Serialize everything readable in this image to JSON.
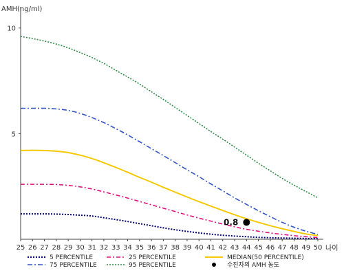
{
  "chart_data": {
    "type": "line",
    "ylabel": "AMH(ng/ml)",
    "xlabel": "나이",
    "x": [
      25,
      26,
      27,
      28,
      29,
      30,
      31,
      32,
      33,
      34,
      35,
      36,
      37,
      38,
      39,
      40,
      41,
      42,
      43,
      44,
      45,
      46,
      47,
      48,
      49,
      50
    ],
    "xlim": [
      25,
      50
    ],
    "ylim": [
      0,
      11
    ],
    "yticks": [
      5,
      10
    ],
    "series": [
      {
        "name": "5 PERCENTILE",
        "color": "#00006e",
        "dash": "2,2",
        "width": 2,
        "values": [
          1.2,
          1.2,
          1.2,
          1.19,
          1.17,
          1.14,
          1.1,
          1.02,
          0.93,
          0.84,
          0.74,
          0.64,
          0.54,
          0.45,
          0.37,
          0.3,
          0.24,
          0.19,
          0.15,
          0.12,
          0.09,
          0.07,
          0.06,
          0.05,
          0.04,
          0.03
        ]
      },
      {
        "name": "25 PERCENTILE",
        "color": "#e0117f",
        "dash": "6,3,2,3",
        "width": 1.6,
        "values": [
          2.6,
          2.6,
          2.6,
          2.59,
          2.55,
          2.48,
          2.38,
          2.24,
          2.1,
          1.95,
          1.79,
          1.63,
          1.47,
          1.31,
          1.15,
          1.0,
          0.86,
          0.72,
          0.59,
          0.47,
          0.38,
          0.3,
          0.23,
          0.17,
          0.12,
          0.08
        ]
      },
      {
        "name": "MEDIAN(50 PERCENTILE)",
        "color": "#f5c800",
        "dash": "",
        "width": 2,
        "values": [
          4.2,
          4.21,
          4.2,
          4.17,
          4.1,
          3.98,
          3.82,
          3.62,
          3.4,
          3.17,
          2.93,
          2.7,
          2.46,
          2.23,
          2.0,
          1.78,
          1.57,
          1.36,
          1.16,
          0.97,
          0.8,
          0.64,
          0.5,
          0.37,
          0.25,
          0.17
        ]
      },
      {
        "name": "75 PERCENTILE",
        "color": "#3153c4",
        "dash": "7,3,2,3",
        "width": 1.6,
        "values": [
          6.2,
          6.2,
          6.2,
          6.17,
          6.1,
          5.96,
          5.76,
          5.52,
          5.24,
          4.94,
          4.62,
          4.29,
          3.96,
          3.63,
          3.29,
          2.96,
          2.62,
          2.29,
          1.96,
          1.65,
          1.35,
          1.07,
          0.8,
          0.57,
          0.38,
          0.23
        ]
      },
      {
        "name": "95 PERCENTILE",
        "color": "#2e8b45",
        "dash": "2,2",
        "width": 1.6,
        "values": [
          9.6,
          9.5,
          9.38,
          9.24,
          9.06,
          8.84,
          8.6,
          8.32,
          8.0,
          7.68,
          7.35,
          6.98,
          6.62,
          6.24,
          5.86,
          5.48,
          5.1,
          4.74,
          4.36,
          3.98,
          3.6,
          3.24,
          2.88,
          2.56,
          2.26,
          1.96
        ]
      }
    ],
    "marker": {
      "name": "수진자의 AMH 농도",
      "x": 44,
      "y": 0.8,
      "label": "0.8",
      "color": "#000000"
    },
    "legend": {
      "placement": "bottom",
      "rows": [
        [
          "5 PERCENTILE",
          "25 PERCENTILE",
          "MEDIAN(50 PERCENTILE)"
        ],
        [
          "75 PERCENTILE",
          "95 PERCENTILE",
          "수진자의 AMH 농도"
        ]
      ]
    }
  }
}
